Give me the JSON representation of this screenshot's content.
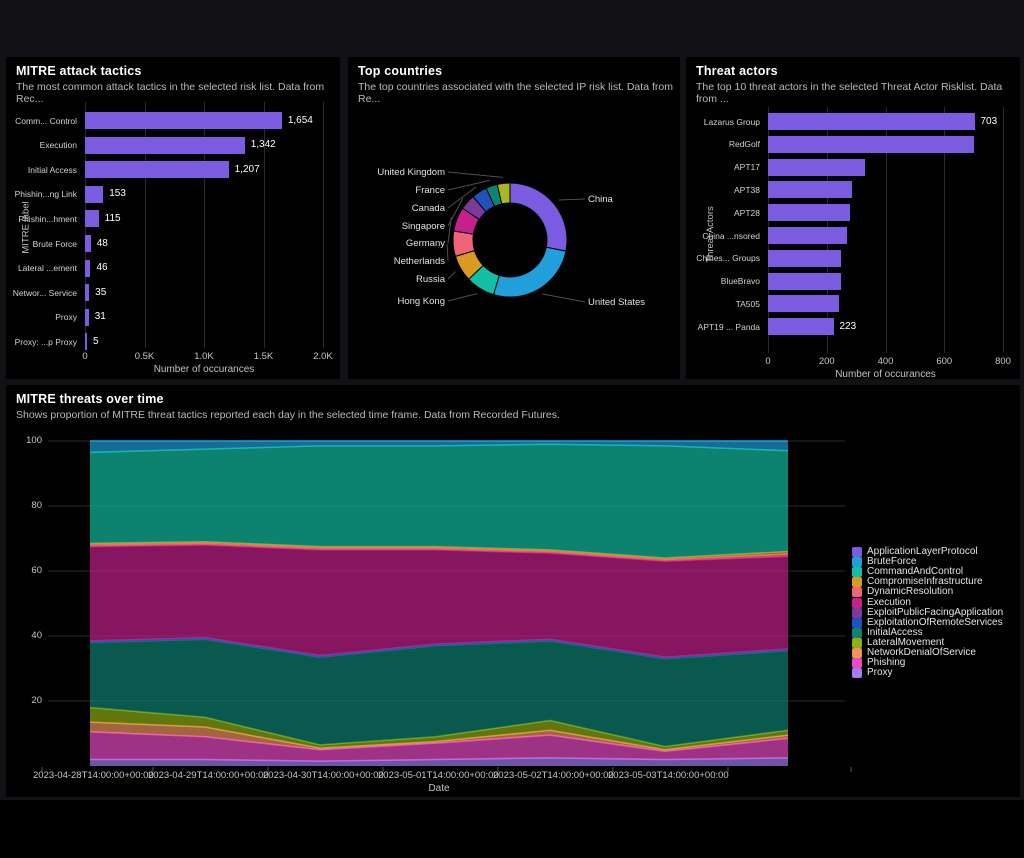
{
  "chart_data": [
    {
      "type": "bar",
      "orientation": "horizontal",
      "title": "MITRE attack tactics",
      "subtitle": "The most common attack tactics in the selected risk list. Data from Rec...",
      "xlabel": "Number of occurances",
      "ylabel": "MITRE label",
      "xticks": [
        "0",
        "0.5K",
        "1.0K",
        "1.5K",
        "2.0K"
      ],
      "xlim": [
        0,
        2000
      ],
      "bar_color": "#7B5BE0",
      "bars": [
        {
          "label": "Comm... Control",
          "value": 1654,
          "display": "1,654"
        },
        {
          "label": "Execution",
          "value": 1342,
          "display": "1,342"
        },
        {
          "label": "Initial Access",
          "value": 1207,
          "display": "1,207"
        },
        {
          "label": "Phishin...ng Link",
          "value": 153,
          "display": "153"
        },
        {
          "label": "Phishin...hment",
          "value": 115,
          "display": "115"
        },
        {
          "label": "Brute Force",
          "value": 48,
          "display": "48"
        },
        {
          "label": "Lateral ...ement",
          "value": 46,
          "display": "46"
        },
        {
          "label": "Networ... Service",
          "value": 35,
          "display": "35"
        },
        {
          "label": "Proxy",
          "value": 31,
          "display": "31"
        },
        {
          "label": "Proxy: ...p Proxy",
          "value": 5,
          "display": "5"
        }
      ]
    },
    {
      "type": "pie",
      "donut": true,
      "title": "Top countries",
      "subtitle": "The top countries associated with the selected IP risk list. Data from Re...",
      "slices": [
        {
          "label": "China",
          "value": 28.3,
          "color": "#7B5BE0"
        },
        {
          "label": "United States",
          "value": 26.7,
          "color": "#219FDB"
        },
        {
          "label": "Hong Kong",
          "value": 8.3,
          "color": "#12BFA4"
        },
        {
          "label": "Russia",
          "value": 7.5,
          "color": "#D89A20"
        },
        {
          "label": "Netherlands",
          "value": 7.2,
          "color": "#F0647A"
        },
        {
          "label": "Germany",
          "value": 6.9,
          "color": "#C4218C"
        },
        {
          "label": "Singapore",
          "value": 4.4,
          "color": "#7C3A9B"
        },
        {
          "label": "Canada",
          "value": 4.4,
          "color": "#2052BC"
        },
        {
          "label": "France",
          "value": 3.3,
          "color": "#0E8374"
        },
        {
          "label": "United Kingdom",
          "value": 3.6,
          "color": "#A9B81E"
        }
      ]
    },
    {
      "type": "bar",
      "orientation": "horizontal",
      "title": "Threat actors",
      "subtitle": "The top 10 threat actors in the selected Threat Actor Risklist. Data from ...",
      "xlabel": "Number of occurances",
      "ylabel": "Threat Actors",
      "xticks": [
        "0",
        "200",
        "400",
        "600",
        "800"
      ],
      "xlim": [
        0,
        800
      ],
      "bar_color": "#7B5BE0",
      "bars": [
        {
          "label": "Lazarus Group",
          "value": 703,
          "display": "703"
        },
        {
          "label": "RedGolf",
          "value": 700,
          "display": ""
        },
        {
          "label": "APT17",
          "value": 330,
          "display": ""
        },
        {
          "label": "APT38",
          "value": 285,
          "display": ""
        },
        {
          "label": "APT28",
          "value": 280,
          "display": ""
        },
        {
          "label": "China ...nsored",
          "value": 270,
          "display": ""
        },
        {
          "label": "Chines... Groups",
          "value": 250,
          "display": ""
        },
        {
          "label": "BlueBravo",
          "value": 248,
          "display": ""
        },
        {
          "label": "TA505",
          "value": 240,
          "display": ""
        },
        {
          "label": "APT19 ... Panda",
          "value": 223,
          "display": "223"
        }
      ]
    },
    {
      "type": "area",
      "stacked": true,
      "normalized": true,
      "title": "MITRE threats over time",
      "subtitle": "Shows proportion of MITRE threat tactics reported each day in the selected time frame. Data from Recorded Futures.",
      "xlabel": "Date",
      "ylim": [
        0,
        100
      ],
      "yticks": [
        100,
        80,
        60,
        40,
        20
      ],
      "x_tick_labels": [
        "2023-04-28T14:00:00+00:00",
        "2023-04-29T14:00:00+00:00",
        "2023-04-30T14:00:00+00:00",
        "2023-05-01T14:00:00+00:00",
        "2023-05-02T14:00:00+00:00",
        "2023-05-03T14:00:00+00:00"
      ],
      "legend_order": [
        "ApplicationLayerProtocol",
        "BruteForce",
        "CommandAndControl",
        "CompromiseInfrastructure",
        "DynamicResolution",
        "Execution",
        "ExploitPublicFacingApplication",
        "ExploitationOfRemoteServices",
        "InitialAccess",
        "LateralMovement",
        "NetworkDenialOfService",
        "Phishing",
        "Proxy"
      ],
      "series": [
        {
          "name": "Proxy",
          "color": "#A47CF0",
          "values": [
            2,
            2,
            1.5,
            2,
            2.5,
            2,
            2.5
          ]
        },
        {
          "name": "Phishing",
          "color": "#E94BC6",
          "values": [
            8.5,
            7,
            3.5,
            5,
            7,
            2.5,
            6
          ]
        },
        {
          "name": "NetworkDenialOfService",
          "color": "#F0945E",
          "values": [
            3,
            3,
            0.5,
            0.5,
            1.5,
            0.5,
            1
          ]
        },
        {
          "name": "LateralMovement",
          "color": "#8FAF14",
          "values": [
            4.5,
            3,
            1,
            1.5,
            3,
            1,
            1.5
          ]
        },
        {
          "name": "InitialAccess",
          "color": "#0E8374",
          "values": [
            20,
            24,
            27,
            28,
            24.5,
            27,
            24.5
          ]
        },
        {
          "name": "ExploitationOfRemoteServices",
          "color": "#2052BC",
          "values": [
            0.2,
            0.2,
            0.2,
            0.2,
            0.2,
            0.2,
            0.2
          ]
        },
        {
          "name": "ExploitPublicFacingApplication",
          "color": "#7C3A9B",
          "values": [
            0.3,
            0.3,
            0.3,
            0.3,
            0.3,
            0.3,
            0.3
          ]
        },
        {
          "name": "Execution",
          "color": "#C4218C",
          "values": [
            29,
            28.5,
            32.5,
            29,
            26.5,
            29.5,
            28.5
          ]
        },
        {
          "name": "DynamicResolution",
          "color": "#F0647A",
          "values": [
            0.5,
            0.5,
            0.5,
            0.5,
            0.5,
            0.5,
            0.7
          ]
        },
        {
          "name": "CompromiseInfrastructure",
          "color": "#D89A20",
          "values": [
            0.5,
            0.5,
            0.5,
            0.5,
            0.5,
            0.5,
            0.8
          ]
        },
        {
          "name": "CommandAndControl",
          "color": "#12BFA4",
          "values": [
            28,
            28.5,
            31,
            31,
            32.5,
            34.5,
            31
          ]
        },
        {
          "name": "BruteForce",
          "color": "#219FDB",
          "values": [
            3.5,
            2.5,
            1.5,
            1.5,
            1,
            1.5,
            3
          ]
        },
        {
          "name": "ApplicationLayerProtocol",
          "color": "#7B5BE0",
          "values": [
            0,
            0,
            0,
            0,
            0,
            0,
            0
          ]
        }
      ]
    }
  ]
}
